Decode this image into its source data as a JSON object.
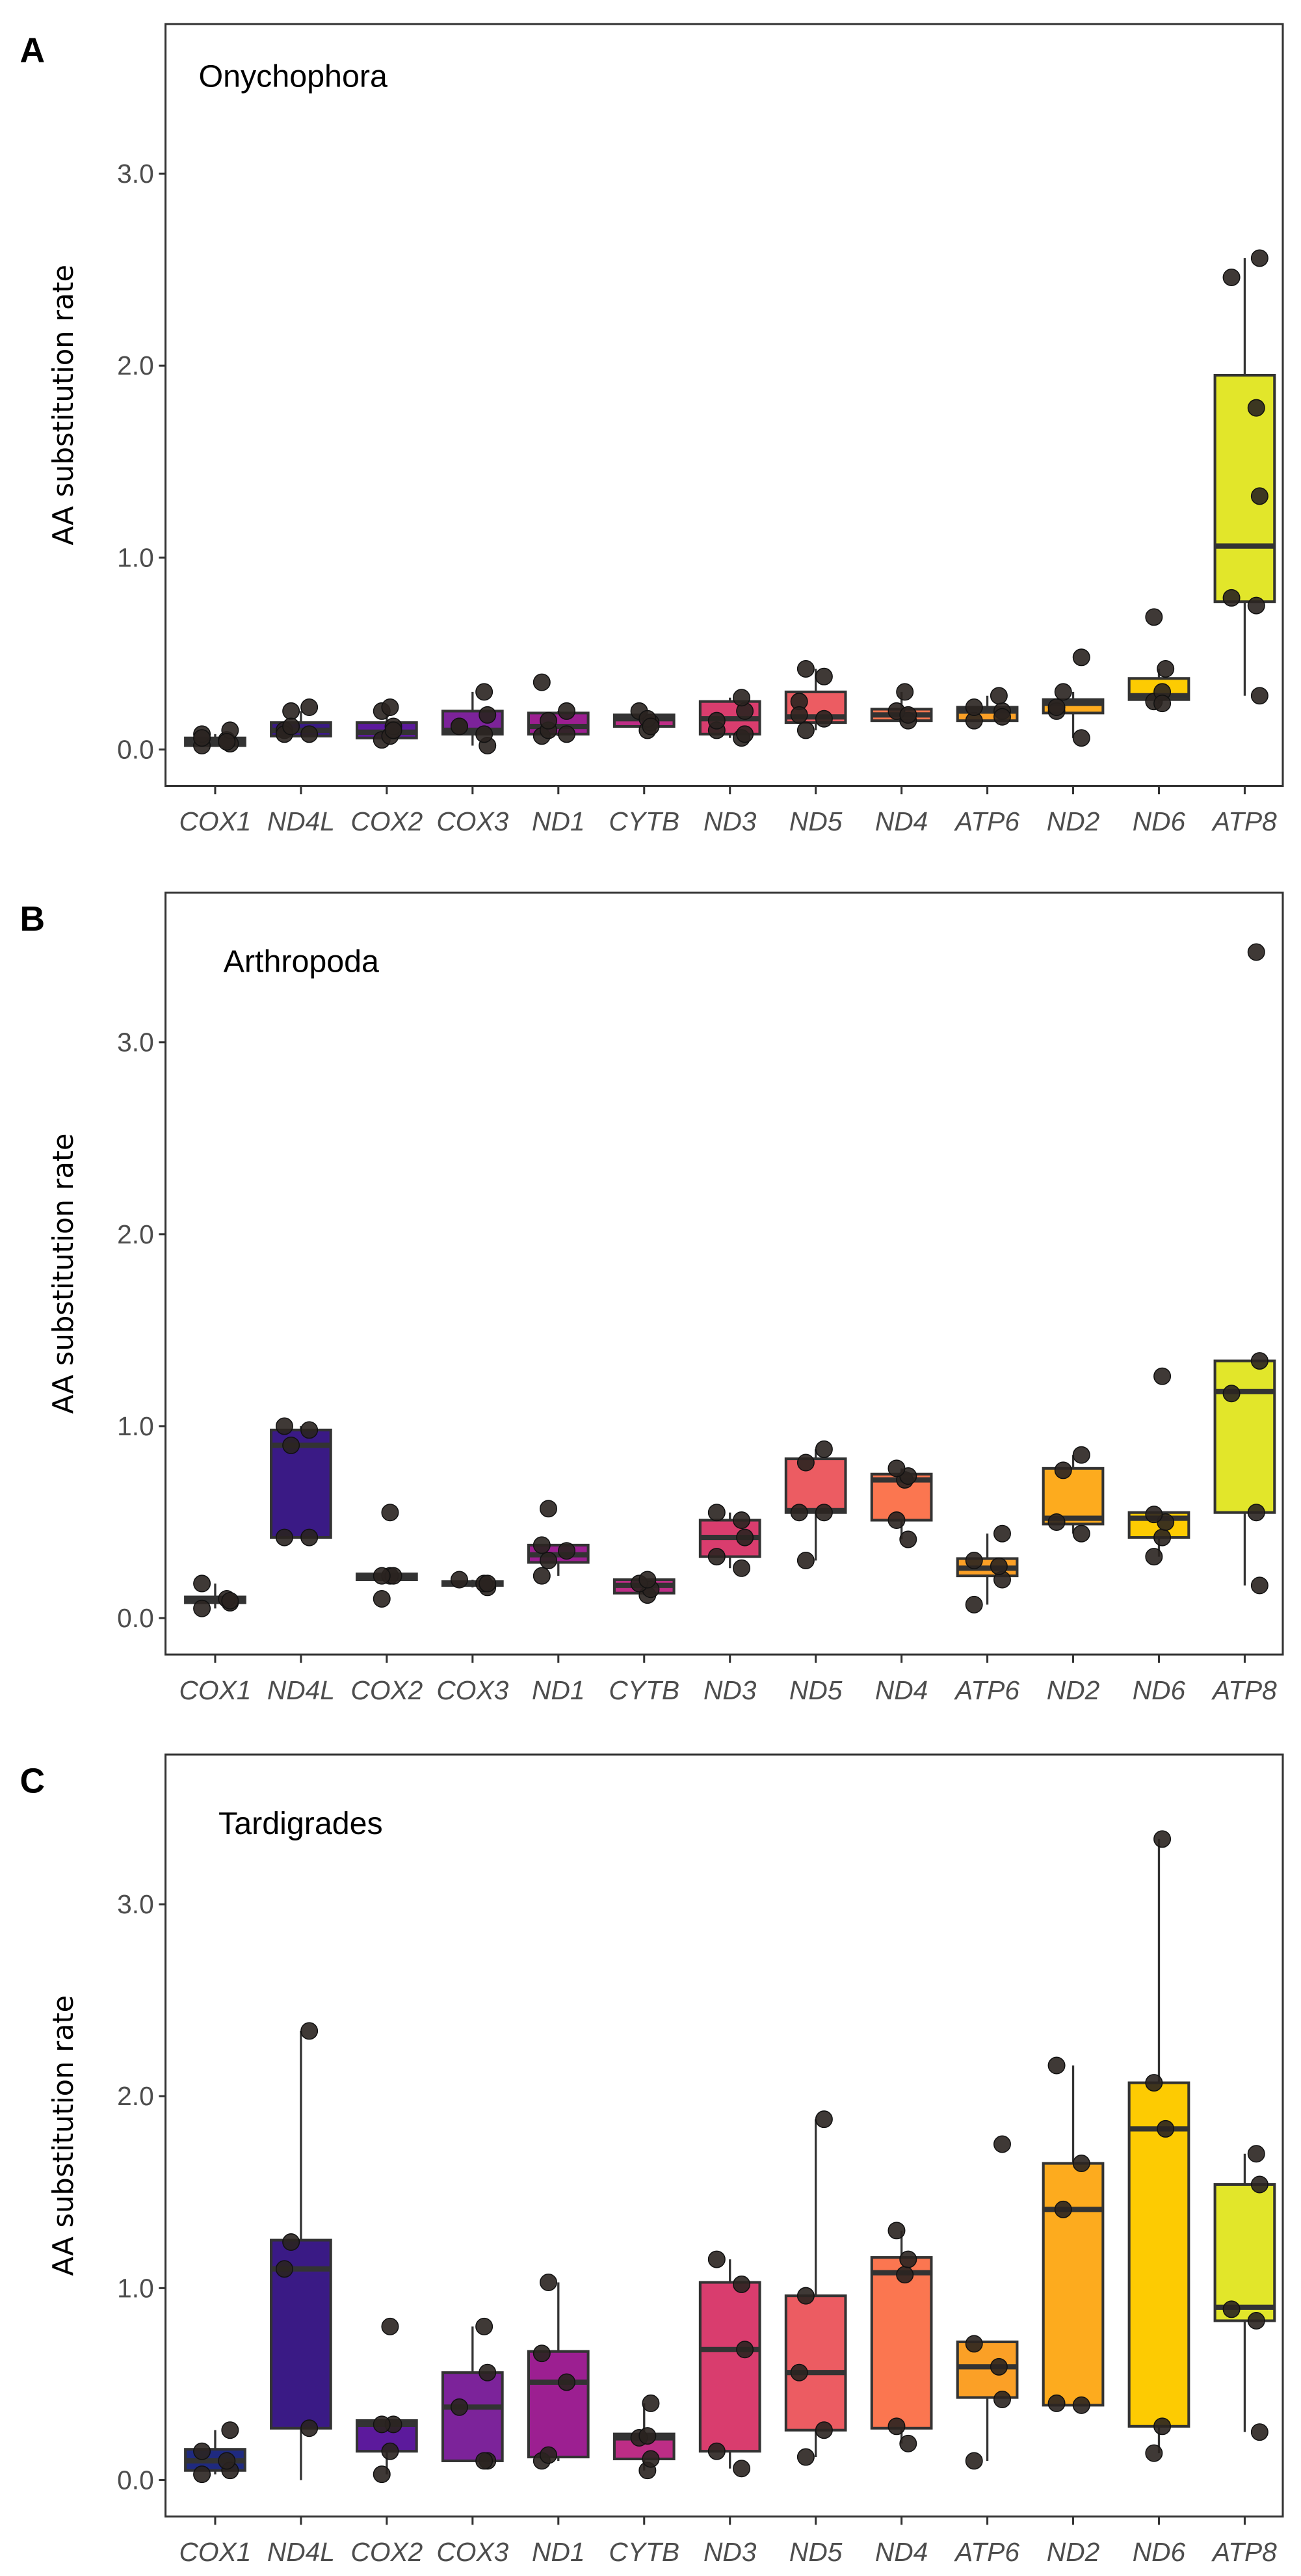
{
  "chart_data": {
    "type": "box",
    "categories": [
      "COX1",
      "ND4L",
      "COX2",
      "COX3",
      "ND1",
      "CYTB",
      "ND3",
      "ND5",
      "ND4",
      "ATP6",
      "ND2",
      "ND6",
      "ATP8"
    ],
    "colors": [
      "#1f2a80",
      "#3a1a85",
      "#5c1a9c",
      "#7c239a",
      "#9c1f91",
      "#bd2d86",
      "#d93d6e",
      "#ec5c62",
      "#fb7650",
      "#fba026",
      "#fdab1e",
      "#fdcb02",
      "#e2e62a"
    ],
    "ylabel": "AA  substitution rate",
    "yticks": [
      "0.0",
      "1.0",
      "2.0",
      "3.0"
    ],
    "ylim": [
      -0.19,
      3.78
    ],
    "panels": [
      {
        "letter": "A",
        "title": "Onychophora",
        "boxes": [
          {
            "q1": 0.02,
            "median": 0.04,
            "q3": 0.06,
            "lo": 0.02,
            "hi": 0.08,
            "points": [
              0.02,
              0.03,
              0.05,
              0.08,
              0.1,
              0.04,
              0.06
            ]
          },
          {
            "q1": 0.07,
            "median": 0.1,
            "q3": 0.14,
            "lo": 0.07,
            "hi": 0.2,
            "points": [
              0.08,
              0.1,
              0.2,
              0.22,
              0.08,
              0.12
            ]
          },
          {
            "q1": 0.06,
            "median": 0.09,
            "q3": 0.14,
            "lo": 0.05,
            "hi": 0.2,
            "points": [
              0.05,
              0.07,
              0.12,
              0.2,
              0.22,
              0.1
            ]
          },
          {
            "q1": 0.08,
            "median": 0.1,
            "q3": 0.2,
            "lo": 0.02,
            "hi": 0.3,
            "points": [
              0.02,
              0.08,
              0.12,
              0.18,
              0.3,
              0.12
            ]
          },
          {
            "q1": 0.08,
            "median": 0.12,
            "q3": 0.19,
            "lo": 0.07,
            "hi": 0.2,
            "points": [
              0.07,
              0.1,
              0.2,
              0.35,
              0.15,
              0.08
            ]
          },
          {
            "q1": 0.12,
            "median": 0.16,
            "q3": 0.18,
            "lo": 0.1,
            "hi": 0.2,
            "points": [
              0.1,
              0.14,
              0.2,
              0.16,
              0.12
            ]
          },
          {
            "q1": 0.08,
            "median": 0.16,
            "q3": 0.25,
            "lo": 0.06,
            "hi": 0.27,
            "points": [
              0.06,
              0.1,
              0.2,
              0.27,
              0.15,
              0.08
            ]
          },
          {
            "q1": 0.14,
            "median": 0.17,
            "q3": 0.3,
            "lo": 0.1,
            "hi": 0.42,
            "points": [
              0.1,
              0.16,
              0.25,
              0.42,
              0.38,
              0.18
            ]
          },
          {
            "q1": 0.15,
            "median": 0.18,
            "q3": 0.21,
            "lo": 0.15,
            "hi": 0.3,
            "points": [
              0.15,
              0.2,
              0.3,
              0.18
            ]
          },
          {
            "q1": 0.15,
            "median": 0.2,
            "q3": 0.22,
            "lo": 0.15,
            "hi": 0.28,
            "points": [
              0.15,
              0.2,
              0.28,
              0.22,
              0.17
            ]
          },
          {
            "q1": 0.19,
            "median": 0.24,
            "q3": 0.26,
            "lo": 0.06,
            "hi": 0.3,
            "points": [
              0.06,
              0.2,
              0.3,
              0.48,
              0.22
            ]
          },
          {
            "q1": 0.26,
            "median": 0.28,
            "q3": 0.37,
            "lo": 0.24,
            "hi": 0.42,
            "points": [
              0.25,
              0.3,
              0.42,
              0.69,
              0.24
            ]
          },
          {
            "q1": 0.77,
            "median": 1.06,
            "q3": 1.95,
            "lo": 0.28,
            "hi": 2.56,
            "points": [
              0.28,
              0.75,
              0.79,
              1.32,
              1.78,
              2.46,
              2.56
            ]
          }
        ]
      },
      {
        "letter": "B",
        "title": "Arthropoda",
        "boxes": [
          {
            "q1": 0.08,
            "median": 0.09,
            "q3": 0.11,
            "lo": 0.05,
            "hi": 0.18,
            "points": [
              0.05,
              0.08,
              0.1,
              0.18,
              0.09
            ]
          },
          {
            "q1": 0.42,
            "median": 0.9,
            "q3": 0.98,
            "lo": 0.42,
            "hi": 1.0,
            "points": [
              0.42,
              0.42,
              0.9,
              0.98,
              1.0
            ]
          },
          {
            "q1": 0.2,
            "median": 0.22,
            "q3": 0.23,
            "lo": 0.2,
            "hi": 0.23,
            "points": [
              0.1,
              0.22,
              0.22,
              0.22,
              0.55
            ]
          },
          {
            "q1": 0.17,
            "median": 0.18,
            "q3": 0.19,
            "lo": 0.16,
            "hi": 0.2,
            "points": [
              0.16,
              0.18,
              0.2,
              0.18
            ]
          },
          {
            "q1": 0.29,
            "median": 0.33,
            "q3": 0.38,
            "lo": 0.22,
            "hi": 0.38,
            "points": [
              0.22,
              0.3,
              0.35,
              0.38,
              0.57
            ]
          },
          {
            "q1": 0.13,
            "median": 0.17,
            "q3": 0.2,
            "lo": 0.12,
            "hi": 0.2,
            "points": [
              0.12,
              0.15,
              0.18,
              0.2
            ]
          },
          {
            "q1": 0.32,
            "median": 0.42,
            "q3": 0.51,
            "lo": 0.26,
            "hi": 0.55,
            "points": [
              0.26,
              0.32,
              0.42,
              0.51,
              0.55
            ]
          },
          {
            "q1": 0.55,
            "median": 0.56,
            "q3": 0.83,
            "lo": 0.3,
            "hi": 0.88,
            "points": [
              0.3,
              0.55,
              0.55,
              0.81,
              0.88
            ]
          },
          {
            "q1": 0.51,
            "median": 0.72,
            "q3": 0.75,
            "lo": 0.41,
            "hi": 0.78,
            "points": [
              0.41,
              0.51,
              0.72,
              0.74,
              0.78
            ]
          },
          {
            "q1": 0.22,
            "median": 0.26,
            "q3": 0.31,
            "lo": 0.07,
            "hi": 0.44,
            "points": [
              0.07,
              0.2,
              0.27,
              0.3,
              0.44
            ]
          },
          {
            "q1": 0.49,
            "median": 0.52,
            "q3": 0.78,
            "lo": 0.44,
            "hi": 0.85,
            "points": [
              0.44,
              0.5,
              0.77,
              0.85
            ]
          },
          {
            "q1": 0.42,
            "median": 0.52,
            "q3": 0.55,
            "lo": 0.32,
            "hi": 0.55,
            "points": [
              0.32,
              0.42,
              0.5,
              0.54,
              1.26
            ]
          },
          {
            "q1": 0.55,
            "median": 1.18,
            "q3": 1.34,
            "lo": 0.17,
            "hi": 1.34,
            "points": [
              0.17,
              0.55,
              1.17,
              1.34,
              3.47
            ]
          }
        ]
      },
      {
        "letter": "C",
        "title": "Tardigrades",
        "boxes": [
          {
            "q1": 0.05,
            "median": 0.1,
            "q3": 0.16,
            "lo": 0.03,
            "hi": 0.26,
            "points": [
              0.03,
              0.05,
              0.1,
              0.15,
              0.26
            ]
          },
          {
            "q1": 0.27,
            "median": 1.1,
            "q3": 1.25,
            "lo": 0.0,
            "hi": 2.34,
            "points": [
              0.27,
              1.1,
              1.24,
              2.34
            ]
          },
          {
            "q1": 0.15,
            "median": 0.29,
            "q3": 0.31,
            "lo": 0.03,
            "hi": 0.31,
            "points": [
              0.03,
              0.15,
              0.29,
              0.29,
              0.8
            ]
          },
          {
            "q1": 0.1,
            "median": 0.38,
            "q3": 0.56,
            "lo": 0.1,
            "hi": 0.8,
            "points": [
              0.1,
              0.1,
              0.38,
              0.56,
              0.8
            ]
          },
          {
            "q1": 0.12,
            "median": 0.51,
            "q3": 0.67,
            "lo": 0.1,
            "hi": 1.03,
            "points": [
              0.1,
              0.13,
              0.51,
              0.66,
              1.03
            ]
          },
          {
            "q1": 0.11,
            "median": 0.22,
            "q3": 0.24,
            "lo": 0.05,
            "hi": 0.4,
            "points": [
              0.05,
              0.11,
              0.22,
              0.23,
              0.4
            ]
          },
          {
            "q1": 0.15,
            "median": 0.68,
            "q3": 1.03,
            "lo": 0.06,
            "hi": 1.15,
            "points": [
              0.06,
              0.15,
              0.68,
              1.02,
              1.15
            ]
          },
          {
            "q1": 0.26,
            "median": 0.56,
            "q3": 0.96,
            "lo": 0.12,
            "hi": 1.88,
            "points": [
              0.12,
              0.26,
              0.56,
              0.96,
              1.88
            ]
          },
          {
            "q1": 0.27,
            "median": 1.08,
            "q3": 1.16,
            "lo": 0.19,
            "hi": 1.3,
            "points": [
              0.19,
              0.28,
              1.07,
              1.15,
              1.3
            ]
          },
          {
            "q1": 0.43,
            "median": 0.59,
            "q3": 0.72,
            "lo": 0.1,
            "hi": 0.72,
            "points": [
              0.1,
              0.42,
              0.59,
              0.71,
              1.75
            ]
          },
          {
            "q1": 0.39,
            "median": 1.41,
            "q3": 1.65,
            "lo": 0.39,
            "hi": 2.16,
            "points": [
              0.39,
              0.4,
              1.41,
              1.65,
              2.16
            ]
          },
          {
            "q1": 0.28,
            "median": 1.83,
            "q3": 2.07,
            "lo": 0.14,
            "hi": 3.34,
            "points": [
              0.14,
              0.28,
              1.83,
              2.07,
              3.34
            ]
          },
          {
            "q1": 0.83,
            "median": 0.9,
            "q3": 1.54,
            "lo": 0.25,
            "hi": 1.7,
            "points": [
              0.25,
              0.83,
              0.89,
              1.54,
              1.7
            ]
          }
        ]
      }
    ]
  }
}
